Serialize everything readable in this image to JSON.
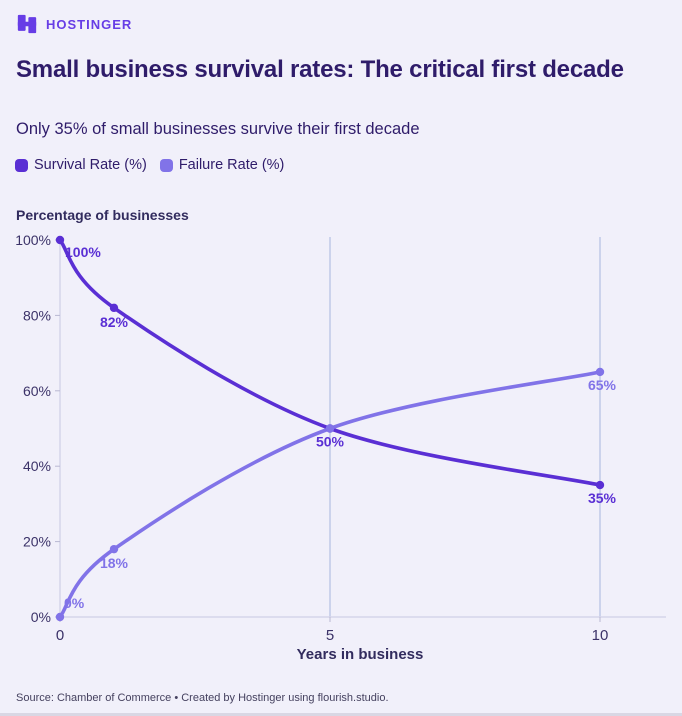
{
  "brand": {
    "name": "HOSTINGER",
    "color": "#673de6"
  },
  "header": {
    "title": "Small business survival rates: The critical first decade",
    "subtitle": "Only 35% of small businesses survive their first decade"
  },
  "legend": [
    {
      "label": "Survival Rate (%)",
      "color": "#5a2fd4"
    },
    {
      "label": "Failure Rate (%)",
      "color": "#8173e8"
    }
  ],
  "colors": {
    "background": "#f1f0fa",
    "title_text": "#2f1c6a",
    "axis_text": "#3b3268",
    "gridline": "#ccd3ec"
  },
  "chart_data": {
    "type": "line",
    "title": "Small business survival rates: The critical first decade",
    "subtitle": "Only 35% of small businesses survive their first decade",
    "xlabel": "Years in business",
    "ylabel": "Percentage of businesses",
    "x": [
      0,
      1,
      5,
      10
    ],
    "series": [
      {
        "name": "Survival Rate (%)",
        "color": "#5a2fd4",
        "values": [
          100,
          82,
          50,
          35
        ],
        "point_labels": [
          "100%",
          "82%",
          "50%",
          "35%"
        ]
      },
      {
        "name": "Failure Rate (%)",
        "color": "#8173e8",
        "values": [
          0,
          18,
          50,
          65
        ],
        "point_labels": [
          "0%",
          "18%",
          null,
          "65%"
        ]
      }
    ],
    "x_ticks": [
      0,
      5,
      10
    ],
    "y_ticks": [
      "0%",
      "20%",
      "40%",
      "60%",
      "80%",
      "100%"
    ],
    "xlim": [
      0,
      10
    ],
    "ylim": [
      0,
      100
    ],
    "grid": "vertical-only",
    "legend_position": "top-left"
  },
  "footer": {
    "source": "Source: Chamber of Commerce • Created by Hostinger using flourish.studio."
  }
}
